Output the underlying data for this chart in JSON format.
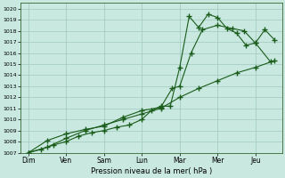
{
  "background_color": "#c8e8e0",
  "grid_color": "#a0c8c0",
  "line_color": "#1a5c1a",
  "xlabel": "Pression niveau de la mer( hPa )",
  "ylim": [
    1007,
    1020.5
  ],
  "yticks": [
    1007,
    1008,
    1009,
    1010,
    1011,
    1012,
    1013,
    1014,
    1015,
    1016,
    1017,
    1018,
    1019,
    1020
  ],
  "days": [
    "Dim",
    "Ven",
    "Sam",
    "Lun",
    "Mar",
    "Mer",
    "Jeu"
  ],
  "day_positions": [
    0,
    1,
    2,
    3,
    4,
    5,
    6
  ],
  "line1_x": [
    0,
    0.33,
    0.67,
    1.0,
    1.33,
    1.67,
    2.0,
    2.33,
    2.67,
    3.0,
    3.25,
    3.5,
    3.75,
    4.0,
    4.25,
    4.5,
    4.75,
    5.0,
    5.25,
    5.5,
    5.75,
    6.0,
    6.25,
    6.5
  ],
  "line1_y": [
    1007.0,
    1007.3,
    1007.7,
    1008.0,
    1008.5,
    1008.8,
    1009.0,
    1009.3,
    1009.5,
    1010.0,
    1010.8,
    1011.2,
    1011.2,
    1014.7,
    1019.3,
    1018.3,
    1019.5,
    1019.2,
    1018.2,
    1017.8,
    1016.7,
    1016.9,
    1018.1,
    1017.2
  ],
  "line2_x": [
    0,
    0.5,
    1.0,
    1.5,
    2.0,
    2.5,
    3.0,
    3.5,
    3.8,
    4.0,
    4.3,
    4.6,
    5.0,
    5.4,
    5.7,
    6.0,
    6.4
  ],
  "line2_y": [
    1007.0,
    1008.1,
    1008.7,
    1009.1,
    1009.4,
    1010.2,
    1010.8,
    1011.1,
    1012.8,
    1013.0,
    1016.0,
    1018.1,
    1018.5,
    1018.2,
    1018.0,
    1016.9,
    1015.2
  ],
  "line3_x": [
    0,
    0.5,
    1.0,
    1.5,
    2.0,
    2.5,
    3.0,
    3.5,
    4.0,
    4.5,
    5.0,
    5.5,
    6.0,
    6.5
  ],
  "line3_y": [
    1007.0,
    1007.5,
    1008.3,
    1009.0,
    1009.5,
    1010.0,
    1010.5,
    1011.0,
    1012.0,
    1012.8,
    1013.5,
    1014.2,
    1014.7,
    1015.3
  ]
}
